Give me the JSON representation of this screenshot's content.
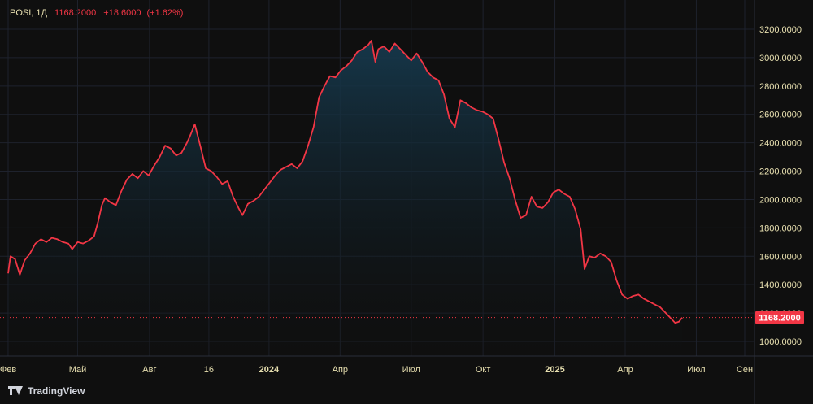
{
  "legend": {
    "symbol": "POSI, 1Д",
    "last": "1168.2000",
    "change": "+18.6000",
    "change_pct": "(+1.62%)"
  },
  "brand": "TradingView",
  "colors": {
    "line": "#f23645",
    "area_top": "#16394d",
    "area_bottom": "#0f0f0f",
    "grid": "#1e222d",
    "axis_text": "#e8e0b0",
    "price_tag_bg": "#f23645"
  },
  "chart_data": {
    "type": "area",
    "y_ticks": [
      "3200.0000",
      "3000.0000",
      "2800.0000",
      "2600.0000",
      "2400.0000",
      "2200.0000",
      "2000.0000",
      "1800.0000",
      "1600.0000",
      "1400.0000",
      "1200.0000",
      "1000.0000"
    ],
    "ylim": [
      930,
      3300
    ],
    "x_ticks": [
      {
        "label": "Фев",
        "x": "2023-02-01",
        "bold": false
      },
      {
        "label": "Май",
        "x": "2023-05-01",
        "bold": false
      },
      {
        "label": "Авг",
        "x": "2023-08-01",
        "bold": false
      },
      {
        "label": "16",
        "x": "2023-10-16",
        "bold": false
      },
      {
        "label": "2024",
        "x": "2024-01-01",
        "bold": true
      },
      {
        "label": "Апр",
        "x": "2024-04-01",
        "bold": false
      },
      {
        "label": "Июл",
        "x": "2024-07-01",
        "bold": false
      },
      {
        "label": "Окт",
        "x": "2024-10-01",
        "bold": false
      },
      {
        "label": "2025",
        "x": "2025-01-01",
        "bold": true
      },
      {
        "label": "Апр",
        "x": "2025-04-01",
        "bold": false
      },
      {
        "label": "Июл",
        "x": "2025-07-01",
        "bold": false
      },
      {
        "label": "Сен",
        "x": "2025-09-01",
        "bold": false
      }
    ],
    "xlim": [
      "2023-02-01",
      "2025-09-01"
    ],
    "last_price": 1168.2,
    "last_price_label": "1168.2000",
    "series": [
      {
        "points": [
          [
            "2023-02-01",
            1480
          ],
          [
            "2023-02-04",
            1600
          ],
          [
            "2023-02-10",
            1580
          ],
          [
            "2023-02-16",
            1470
          ],
          [
            "2023-02-22",
            1570
          ],
          [
            "2023-03-01",
            1620
          ],
          [
            "2023-03-08",
            1690
          ],
          [
            "2023-03-15",
            1720
          ],
          [
            "2023-03-22",
            1700
          ],
          [
            "2023-03-29",
            1730
          ],
          [
            "2023-04-05",
            1720
          ],
          [
            "2023-04-12",
            1700
          ],
          [
            "2023-04-19",
            1690
          ],
          [
            "2023-04-24",
            1650
          ],
          [
            "2023-05-01",
            1700
          ],
          [
            "2023-05-08",
            1690
          ],
          [
            "2023-05-15",
            1710
          ],
          [
            "2023-05-22",
            1740
          ],
          [
            "2023-05-27",
            1840
          ],
          [
            "2023-06-01",
            1960
          ],
          [
            "2023-06-05",
            2010
          ],
          [
            "2023-06-12",
            1980
          ],
          [
            "2023-06-19",
            1960
          ],
          [
            "2023-06-26",
            2060
          ],
          [
            "2023-07-03",
            2140
          ],
          [
            "2023-07-10",
            2180
          ],
          [
            "2023-07-17",
            2150
          ],
          [
            "2023-07-24",
            2200
          ],
          [
            "2023-07-31",
            2170
          ],
          [
            "2023-08-07",
            2240
          ],
          [
            "2023-08-14",
            2300
          ],
          [
            "2023-08-21",
            2380
          ],
          [
            "2023-08-28",
            2360
          ],
          [
            "2023-09-04",
            2310
          ],
          [
            "2023-09-11",
            2330
          ],
          [
            "2023-09-18",
            2400
          ],
          [
            "2023-09-22",
            2450
          ],
          [
            "2023-09-28",
            2530
          ],
          [
            "2023-10-05",
            2380
          ],
          [
            "2023-10-12",
            2220
          ],
          [
            "2023-10-19",
            2200
          ],
          [
            "2023-10-26",
            2160
          ],
          [
            "2023-11-02",
            2110
          ],
          [
            "2023-11-09",
            2130
          ],
          [
            "2023-11-16",
            2020
          ],
          [
            "2023-11-23",
            1940
          ],
          [
            "2023-11-28",
            1890
          ],
          [
            "2023-12-05",
            1970
          ],
          [
            "2023-12-12",
            1990
          ],
          [
            "2023-12-19",
            2020
          ],
          [
            "2023-12-26",
            2070
          ],
          [
            "2024-01-02",
            2120
          ],
          [
            "2024-01-09",
            2170
          ],
          [
            "2024-01-16",
            2210
          ],
          [
            "2024-01-23",
            2230
          ],
          [
            "2024-01-30",
            2250
          ],
          [
            "2024-02-06",
            2220
          ],
          [
            "2024-02-13",
            2270
          ],
          [
            "2024-02-20",
            2380
          ],
          [
            "2024-02-27",
            2510
          ],
          [
            "2024-03-05",
            2720
          ],
          [
            "2024-03-12",
            2800
          ],
          [
            "2024-03-19",
            2870
          ],
          [
            "2024-03-26",
            2860
          ],
          [
            "2024-04-02",
            2910
          ],
          [
            "2024-04-09",
            2940
          ],
          [
            "2024-04-16",
            2980
          ],
          [
            "2024-04-23",
            3040
          ],
          [
            "2024-04-30",
            3060
          ],
          [
            "2024-05-07",
            3090
          ],
          [
            "2024-05-11",
            3120
          ],
          [
            "2024-05-16",
            2970
          ],
          [
            "2024-05-20",
            3060
          ],
          [
            "2024-05-27",
            3080
          ],
          [
            "2024-06-03",
            3040
          ],
          [
            "2024-06-10",
            3100
          ],
          [
            "2024-06-17",
            3060
          ],
          [
            "2024-06-24",
            3020
          ],
          [
            "2024-07-01",
            2980
          ],
          [
            "2024-07-08",
            3030
          ],
          [
            "2024-07-15",
            2970
          ],
          [
            "2024-07-22",
            2900
          ],
          [
            "2024-07-29",
            2860
          ],
          [
            "2024-08-05",
            2840
          ],
          [
            "2024-08-12",
            2740
          ],
          [
            "2024-08-19",
            2570
          ],
          [
            "2024-08-26",
            2510
          ],
          [
            "2024-09-02",
            2700
          ],
          [
            "2024-09-09",
            2680
          ],
          [
            "2024-09-16",
            2650
          ],
          [
            "2024-09-23",
            2630
          ],
          [
            "2024-09-30",
            2620
          ],
          [
            "2024-10-07",
            2600
          ],
          [
            "2024-10-14",
            2570
          ],
          [
            "2024-10-21",
            2420
          ],
          [
            "2024-10-28",
            2260
          ],
          [
            "2024-11-04",
            2150
          ],
          [
            "2024-11-11",
            2000
          ],
          [
            "2024-11-18",
            1870
          ],
          [
            "2024-11-25",
            1890
          ],
          [
            "2024-12-02",
            2020
          ],
          [
            "2024-12-09",
            1950
          ],
          [
            "2024-12-16",
            1940
          ],
          [
            "2024-12-23",
            1980
          ],
          [
            "2024-12-30",
            2050
          ],
          [
            "2025-01-06",
            2070
          ],
          [
            "2025-01-13",
            2040
          ],
          [
            "2025-01-20",
            2020
          ],
          [
            "2025-01-27",
            1930
          ],
          [
            "2025-02-03",
            1790
          ],
          [
            "2025-02-08",
            1510
          ],
          [
            "2025-02-14",
            1600
          ],
          [
            "2025-02-21",
            1590
          ],
          [
            "2025-02-28",
            1620
          ],
          [
            "2025-03-07",
            1600
          ],
          [
            "2025-03-14",
            1560
          ],
          [
            "2025-03-21",
            1430
          ],
          [
            "2025-03-28",
            1330
          ],
          [
            "2025-04-04",
            1300
          ],
          [
            "2025-04-11",
            1320
          ],
          [
            "2025-04-18",
            1330
          ],
          [
            "2025-04-25",
            1300
          ],
          [
            "2025-05-02",
            1280
          ],
          [
            "2025-05-09",
            1260
          ],
          [
            "2025-05-16",
            1240
          ],
          [
            "2025-05-23",
            1200
          ],
          [
            "2025-05-30",
            1160
          ],
          [
            "2025-06-04",
            1130
          ],
          [
            "2025-06-09",
            1140
          ],
          [
            "2025-06-13",
            1168
          ]
        ]
      }
    ]
  }
}
